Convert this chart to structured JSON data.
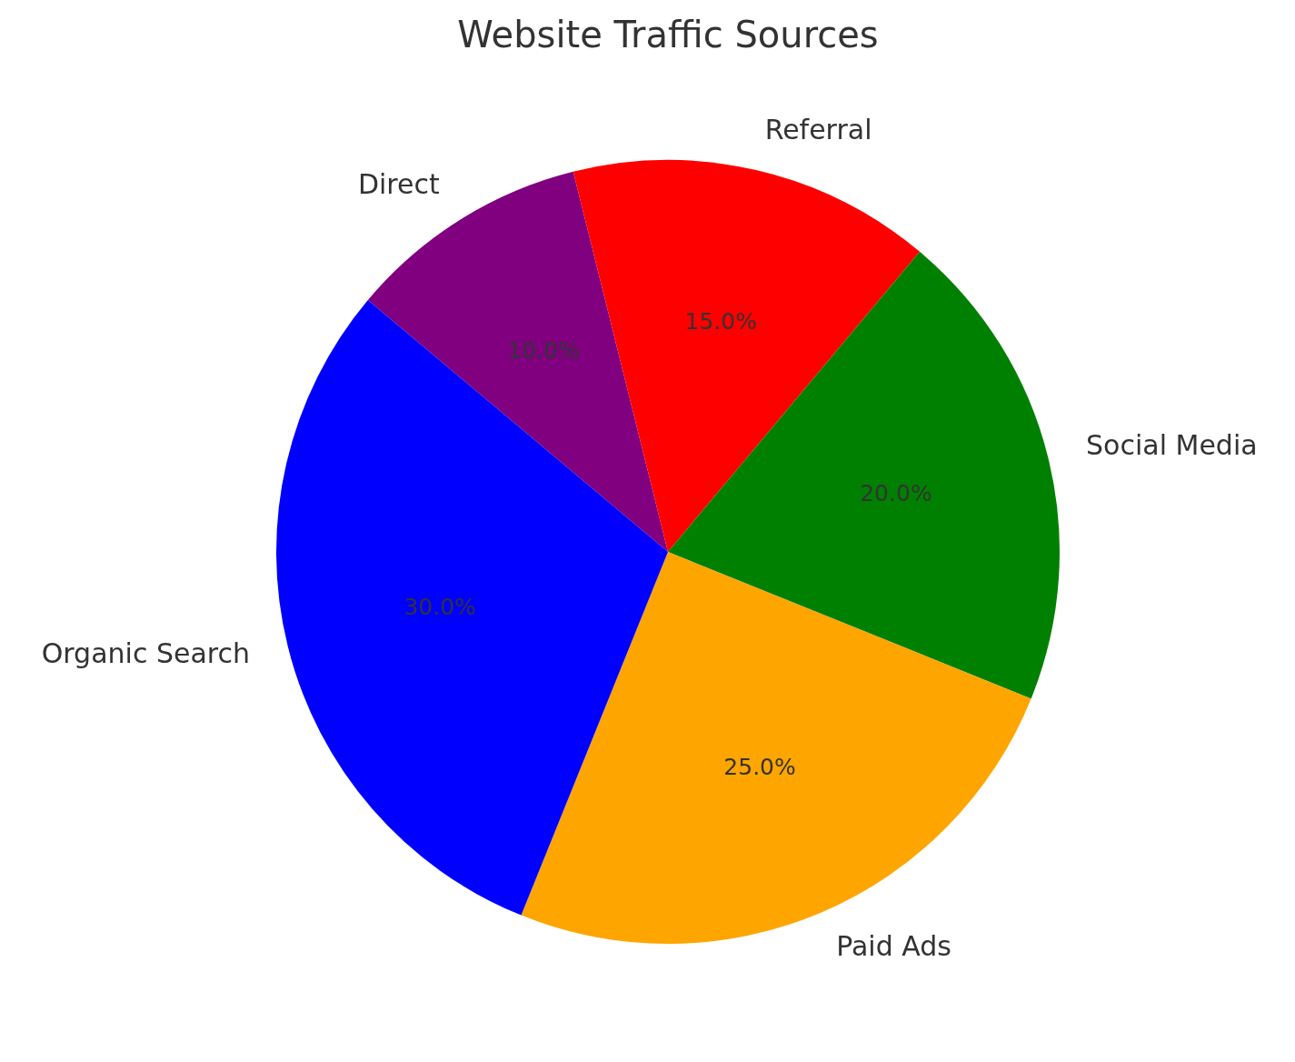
{
  "chart_data": {
    "type": "pie",
    "title": "Website Traffic Sources",
    "categories": [
      "Direct",
      "Referral",
      "Social Media",
      "Paid Ads",
      "Organic Search"
    ],
    "values": [
      10,
      15,
      20,
      25,
      30
    ],
    "colors": [
      "#800080",
      "#ff0000",
      "#008000",
      "#ffa500",
      "#0000ff"
    ],
    "value_labels": [
      "10.0%",
      "15.0%",
      "20.0%",
      "25.0%",
      "30.0%"
    ],
    "legend": false
  }
}
